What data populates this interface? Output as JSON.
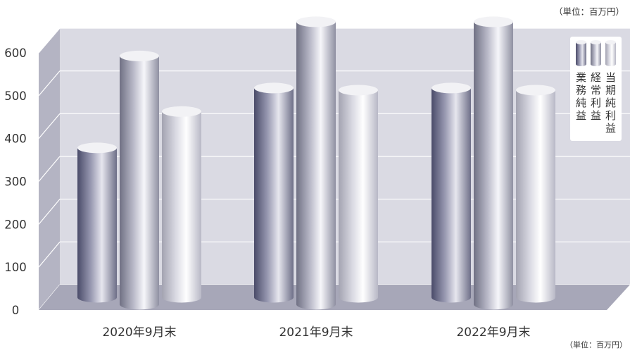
{
  "unit_label_top": "（単位：百万円）",
  "unit_label_bottom": "（単位：百万円）",
  "colors": {
    "wall": "#dadae3",
    "side_wall": "#b4b4c3",
    "floor": "#a7a7b8",
    "grid": "#ffffff",
    "text": "#333333"
  },
  "chart_data": {
    "type": "bar",
    "categories": [
      "2020年9月末",
      "2021年9月末",
      "2022年9月末"
    ],
    "series": [
      {
        "name": "業務純益",
        "values": [
          320,
          460,
          460
        ]
      },
      {
        "name": "経常利益",
        "values": [
          535,
          615,
          615
        ]
      },
      {
        "name": "当期純利益",
        "values": [
          405,
          455,
          455
        ]
      }
    ],
    "ylim": [
      0,
      600
    ],
    "yticks": [
      0,
      100,
      200,
      300,
      400,
      500,
      600
    ],
    "grid": true,
    "legend_position": "top-right",
    "legend_text_orientation": "vertical"
  }
}
